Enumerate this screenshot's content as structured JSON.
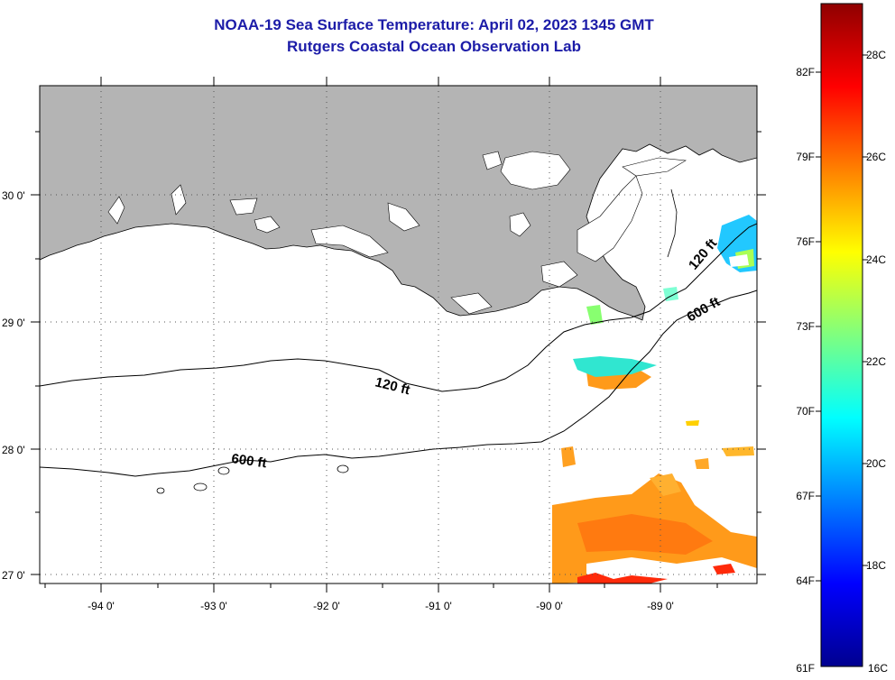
{
  "title": "NOAA-19 Sea Surface Temperature:  April 02, 2023 1345 GMT",
  "subtitle": "Rutgers Coastal Ocean Observation Lab",
  "map": {
    "lon_labels": [
      "-94 0'",
      "-93 0'",
      "-92 0'",
      "-91 0'",
      "-90 0'",
      "-89 0'"
    ],
    "lat_labels": [
      "30 0'",
      "29 0'",
      "28 0'",
      "27 0'"
    ],
    "contour_labels": [
      "120 ft",
      "600 ft",
      "120 ft",
      "600 ft"
    ],
    "land_color": "#b4b4b4",
    "water_color": "#ffffff"
  },
  "colorbar": {
    "f_labels": [
      "82F",
      "79F",
      "76F",
      "73F",
      "70F",
      "67F",
      "64F",
      "61F"
    ],
    "c_labels": [
      "28C",
      "26C",
      "24C",
      "22C",
      "20C",
      "18C",
      "16C"
    ],
    "colors": [
      "#00008f",
      "#0000ff",
      "#00ffff",
      "#ffff00",
      "#ff7f00",
      "#ff0000",
      "#8f0000"
    ]
  }
}
